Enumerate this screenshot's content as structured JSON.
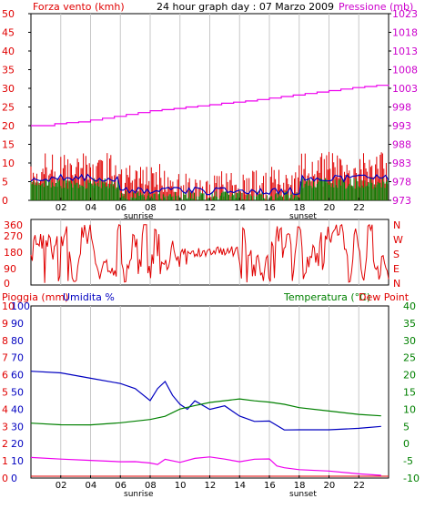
{
  "window": {
    "title": "24 hour graph day : 07 Marzo 2009"
  },
  "colors": {
    "red": "#e00000",
    "magenta": "#ee00ee",
    "blue": "#0000c0",
    "green": "#008000",
    "grid": "#c8c8c8",
    "frame": "#000000",
    "wind_axis_text": "#e00000",
    "pressure_axis_text": "#cc00cc",
    "rain_axis_text": "#e00000",
    "humidity_axis_text": "#0000c0",
    "temp_axis_text": "#008000",
    "dew_text": "#e00000"
  },
  "chart_data": [
    {
      "type": "line",
      "id": "wind_pressure",
      "left_label": "Forza vento (kmh)",
      "right_label": "Pressione (mb)",
      "left_ticks": [
        "50",
        "45",
        "40",
        "35",
        "30",
        "25",
        "20",
        "15",
        "10",
        "5",
        "0"
      ],
      "right_ticks": [
        "1023",
        "1018",
        "1013",
        "1008",
        "1003",
        "998",
        "993",
        "988",
        "983",
        "978",
        "973"
      ],
      "ylim_left": [
        0,
        50
      ],
      "ylim_right": [
        973,
        1023
      ],
      "x_ticks": [
        "02",
        "04",
        "06",
        "08",
        "10",
        "12",
        "14",
        "16",
        "18",
        "20",
        "22"
      ],
      "x_markers": {
        "sunrise": "sunrise",
        "sunset": "sunset"
      },
      "series": [
        {
          "name": "pressure",
          "color": "#ee00ee",
          "values": [
            993,
            993,
            993.5,
            993.8,
            994,
            994.5,
            995,
            995.5,
            996,
            996.5,
            997,
            997.3,
            997.6,
            998,
            998.3,
            998.6,
            999,
            999.3,
            999.6,
            1000,
            1000.4,
            1000.8,
            1001.2,
            1001.6,
            1002,
            1002.4,
            1002.8,
            1003.2,
            1003.5,
            1003.8,
            1004
          ]
        }
      ]
    },
    {
      "type": "line",
      "id": "wind_direction",
      "left_ticks": [
        "360",
        "270",
        "180",
        "90",
        "0"
      ],
      "right_ticks": [
        "N",
        "W",
        "S",
        "E",
        "N"
      ],
      "ylim": [
        0,
        360
      ]
    },
    {
      "type": "line",
      "id": "rain_humidity_temp",
      "left_label_1": "Pioggia (mm)",
      "left_label_2": "Umidita %",
      "right_label_1": "Temperatura (°C)",
      "right_label_2": "Dew Point",
      "rain_ticks": [
        "10",
        "9",
        "8",
        "7",
        "6",
        "5",
        "4",
        "3",
        "2",
        "1",
        "0"
      ],
      "hum_ticks": [
        "100",
        "90",
        "80",
        "70",
        "60",
        "50",
        "40",
        "30",
        "20",
        "10",
        "0"
      ],
      "temp_ticks": [
        "40",
        "35",
        "30",
        "25",
        "20",
        "15",
        "10",
        "5",
        "0",
        "-5",
        "-10"
      ],
      "rain_ylim": [
        0,
        10
      ],
      "humidity_ylim": [
        0,
        100
      ],
      "temp_ylim": [
        -10,
        40
      ],
      "x_ticks": [
        "02",
        "04",
        "06",
        "08",
        "10",
        "12",
        "14",
        "16",
        "18",
        "20",
        "22"
      ],
      "x_markers": {
        "sunrise": "sunrise",
        "sunset": "sunset"
      },
      "series": [
        {
          "name": "humidity",
          "color": "#0000c0",
          "x": [
            0,
            2,
            4,
            6,
            7,
            8,
            8.5,
            9,
            9.5,
            10,
            10.5,
            11,
            12,
            13,
            14,
            15,
            16,
            17,
            18,
            20,
            22,
            23.5
          ],
          "values": [
            62,
            61,
            58,
            55,
            52,
            45,
            52,
            56,
            48,
            43,
            40,
            45,
            40,
            42,
            36,
            33,
            33,
            28,
            28,
            28,
            29,
            30
          ]
        },
        {
          "name": "temperature",
          "color": "#008000",
          "x": [
            0,
            2,
            4,
            6,
            8,
            9,
            10,
            11,
            12,
            14,
            15,
            16,
            17,
            18,
            20,
            22,
            23.5
          ],
          "values": [
            6,
            5.5,
            5.5,
            6,
            7,
            8,
            10,
            11,
            12,
            13,
            12.5,
            12,
            11.5,
            10.5,
            9.5,
            8.5,
            8
          ]
        },
        {
          "name": "dewpoint",
          "color": "#ee00ee",
          "x": [
            0,
            2,
            4,
            6,
            7,
            8,
            8.5,
            9,
            10,
            11,
            12,
            13,
            14,
            15,
            16,
            16.5,
            17,
            18,
            20,
            22,
            23.5
          ],
          "values": [
            -4,
            -4.5,
            -4.8,
            -5.2,
            -5.3,
            -5.6,
            -6,
            -4.5,
            -5.5,
            -4.2,
            -3.8,
            -4.5,
            -5.2,
            -4.5,
            -4.5,
            -6.5,
            -7,
            -7.5,
            -8,
            -8.8,
            -9.2
          ]
        }
      ]
    }
  ]
}
